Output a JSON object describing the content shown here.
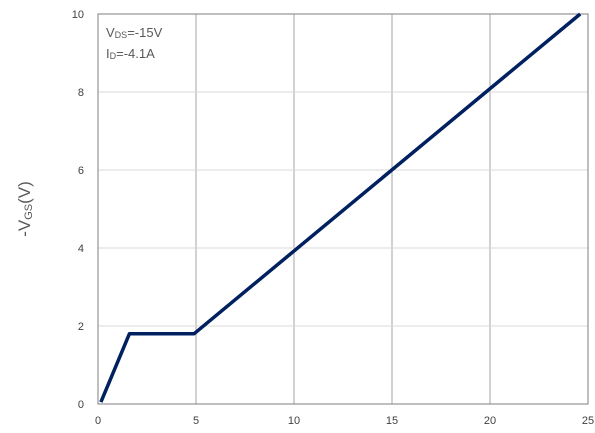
{
  "chart_data": {
    "type": "line",
    "title": "",
    "ylabel": {
      "prefix": "-V",
      "subscript": "GS",
      "suffix": "(V)"
    },
    "xlabel": "",
    "xlim": [
      0,
      25
    ],
    "ylim": [
      0,
      10
    ],
    "x_ticks": [
      "0",
      "5",
      "10",
      "15",
      "20",
      "25"
    ],
    "y_ticks": [
      "0",
      "2",
      "4",
      "6",
      "8",
      "10"
    ],
    "grid": true,
    "annotations": [
      {
        "prefix": "V",
        "subscript": "DS",
        "suffix": "=-15V"
      },
      {
        "prefix": "I",
        "subscript": "D",
        "suffix": "=-4.1A"
      }
    ],
    "series": [
      {
        "color": "#002060",
        "points": [
          {
            "x": 0.15,
            "y": 0.05
          },
          {
            "x": 1.6,
            "y": 1.8
          },
          {
            "x": 4.9,
            "y": 1.8
          },
          {
            "x": 24.6,
            "y": 10.0
          }
        ]
      }
    ]
  }
}
